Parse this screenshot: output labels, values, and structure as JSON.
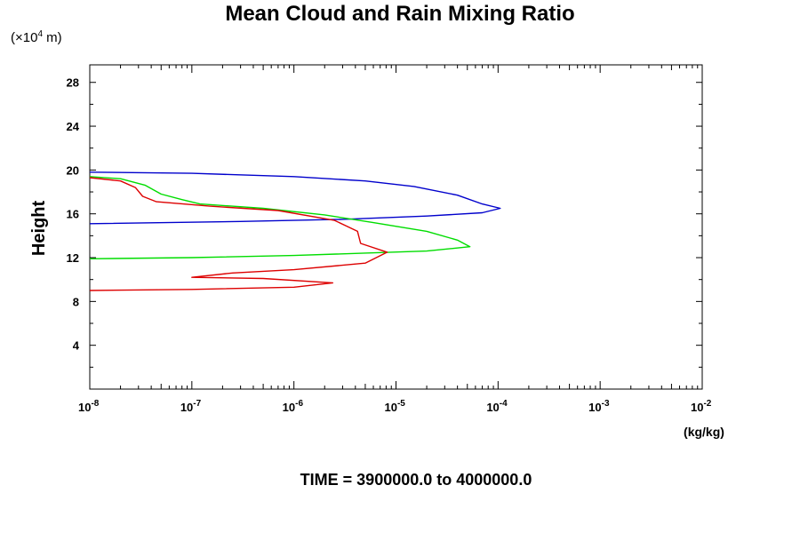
{
  "title": "Mean Cloud and Rain Mixing Ratio",
  "units": {
    "prefix": "(×10",
    "exp": "4",
    "suffix": " m)"
  },
  "time_label": "TIME = 3900000.0 to 4000000.0",
  "chart_data": {
    "type": "line",
    "title": "Mean Cloud and Rain Mixing Ratio",
    "xlabel": "(kg/kg)",
    "ylabel": "Height",
    "x_scale": "log",
    "xlim": [
      1e-08,
      0.01
    ],
    "ylim": [
      0,
      29.6
    ],
    "grid": false,
    "x_ticks": [
      {
        "value": 1e-08,
        "base": "10",
        "exp": "-8"
      },
      {
        "value": 1e-07,
        "base": "10",
        "exp": "-7"
      },
      {
        "value": 1e-06,
        "base": "10",
        "exp": "-6"
      },
      {
        "value": 1e-05,
        "base": "10",
        "exp": "-5"
      },
      {
        "value": 0.0001,
        "base": "10",
        "exp": "-4"
      },
      {
        "value": 0.001,
        "base": "10",
        "exp": "-3"
      },
      {
        "value": 0.01,
        "base": "10",
        "exp": "-2"
      }
    ],
    "y_ticks": [
      4,
      8,
      12,
      16,
      20,
      24,
      28
    ],
    "series": [
      {
        "color": "#0000cc",
        "points": [
          [
            1e-08,
            19.8
          ],
          [
            1e-07,
            19.7
          ],
          [
            1e-06,
            19.4
          ],
          [
            5e-06,
            19.0
          ],
          [
            1.5e-05,
            18.5
          ],
          [
            4e-05,
            17.7
          ],
          [
            7e-05,
            16.9
          ],
          [
            0.000105,
            16.5
          ],
          [
            7e-05,
            16.1
          ],
          [
            2e-05,
            15.8
          ],
          [
            3e-06,
            15.5
          ],
          [
            3e-07,
            15.3
          ],
          [
            1e-08,
            15.1
          ]
        ]
      },
      {
        "color": "#00dd00",
        "points": [
          [
            1e-08,
            19.4
          ],
          [
            2e-08,
            19.2
          ],
          [
            3.5e-08,
            18.6
          ],
          [
            5e-08,
            17.8
          ],
          [
            8e-08,
            17.3
          ],
          [
            1.2e-07,
            16.9
          ],
          [
            5e-07,
            16.5
          ],
          [
            2e-06,
            15.9
          ],
          [
            6e-06,
            15.2
          ],
          [
            2e-05,
            14.4
          ],
          [
            4e-05,
            13.6
          ],
          [
            5.3e-05,
            13.0
          ],
          [
            2e-05,
            12.6
          ],
          [
            1e-06,
            12.2
          ],
          [
            1e-07,
            12.0
          ],
          [
            1e-08,
            11.9
          ]
        ]
      },
      {
        "color": "#dd0000",
        "points": [
          [
            1e-08,
            19.3
          ],
          [
            2e-08,
            19.0
          ],
          [
            2.8e-08,
            18.4
          ],
          [
            3.3e-08,
            17.6
          ],
          [
            4.5e-08,
            17.1
          ],
          [
            1.5e-07,
            16.7
          ],
          [
            7e-07,
            16.3
          ],
          [
            2.5e-06,
            15.4
          ],
          [
            4.2e-06,
            14.4
          ],
          [
            4.5e-06,
            13.3
          ],
          [
            8.2e-06,
            12.5
          ],
          [
            5e-06,
            11.5
          ],
          [
            1e-06,
            10.9
          ],
          [
            2.5e-07,
            10.6
          ],
          [
            1e-07,
            10.2
          ],
          [
            5e-07,
            10.1
          ],
          [
            2.4e-06,
            9.7
          ],
          [
            1e-06,
            9.3
          ],
          [
            1e-07,
            9.1
          ],
          [
            1e-08,
            9.0
          ]
        ]
      }
    ]
  }
}
